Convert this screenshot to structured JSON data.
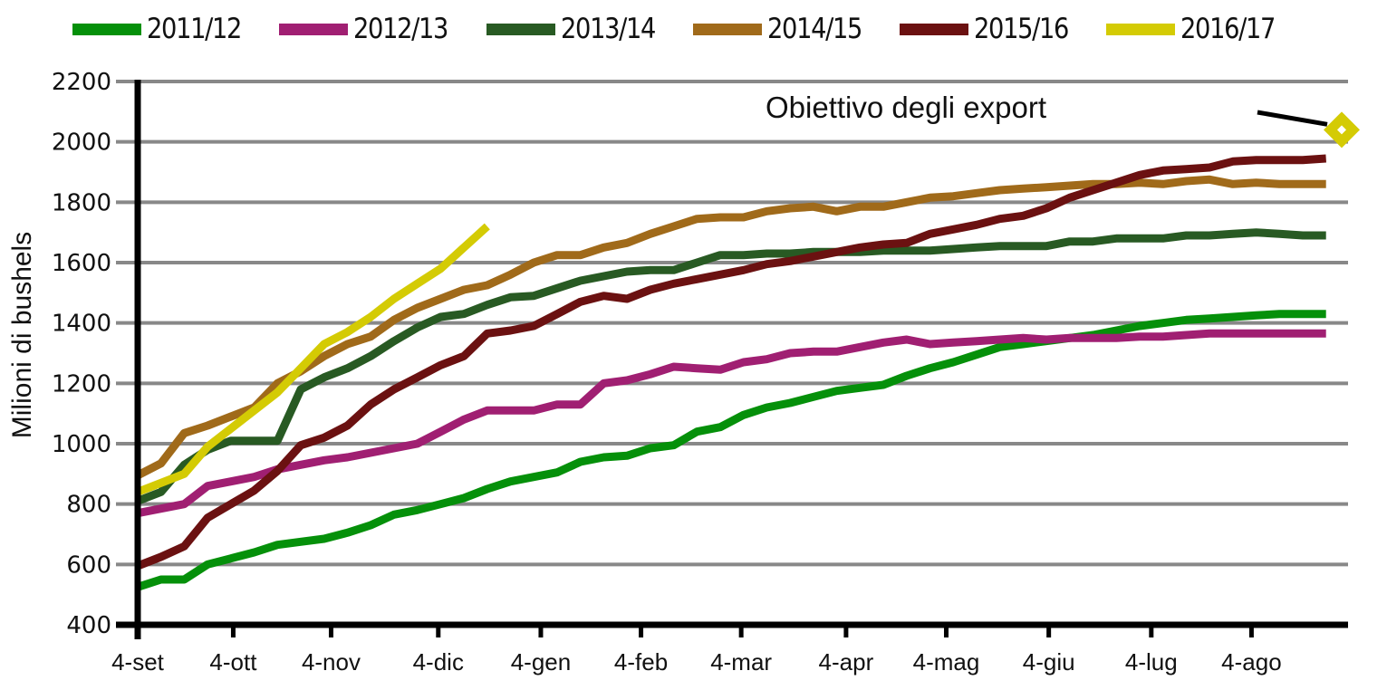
{
  "chart_data": {
    "type": "line",
    "title": "",
    "xlabel": "",
    "ylabel": "Milioni di bushels",
    "ylim": [
      400,
      2200
    ],
    "yticks": [
      400,
      600,
      800,
      1000,
      1200,
      1400,
      1600,
      1800,
      2000,
      2200
    ],
    "x_tick_labels": [
      "4-set",
      "4-ott",
      "4-nov",
      "4-dic",
      "4-gen",
      "4-feb",
      "4-mar",
      "4-apr",
      "4-mag",
      "4-giu",
      "4-lug",
      "4-ago"
    ],
    "x_tick_week_index": [
      0,
      4.1,
      8.3,
      12.9,
      17.3,
      21.6,
      25.9,
      30.4,
      34.7,
      39.1,
      43.5,
      47.8
    ],
    "grid": "horizontal",
    "legend_position": "top",
    "x_unit": "week index from 4-set (weekly)",
    "series": [
      {
        "name": "2011/12",
        "color": "#05900a",
        "values": [
          525,
          550,
          550,
          600,
          620,
          640,
          665,
          675,
          685,
          705,
          730,
          765,
          780,
          800,
          820,
          850,
          875,
          890,
          905,
          940,
          955,
          960,
          985,
          995,
          1040,
          1055,
          1095,
          1120,
          1135,
          1155,
          1175,
          1185,
          1195,
          1225,
          1250,
          1270,
          1295,
          1320,
          1330,
          1340,
          1350,
          1360,
          1375,
          1390,
          1400,
          1410,
          1415,
          1420,
          1425,
          1430,
          1430,
          1430
        ]
      },
      {
        "name": "2012/13",
        "color": "#a01f72",
        "values": [
          770,
          785,
          800,
          860,
          875,
          890,
          915,
          930,
          945,
          955,
          970,
          985,
          1000,
          1040,
          1080,
          1110,
          1110,
          1110,
          1130,
          1130,
          1200,
          1210,
          1230,
          1255,
          1250,
          1245,
          1270,
          1280,
          1300,
          1305,
          1305,
          1320,
          1335,
          1345,
          1330,
          1335,
          1340,
          1345,
          1350,
          1345,
          1350,
          1350,
          1350,
          1355,
          1355,
          1360,
          1365,
          1365,
          1365,
          1365,
          1365,
          1365
        ]
      },
      {
        "name": "2013/14",
        "color": "#285a23",
        "values": [
          810,
          840,
          930,
          980,
          1010,
          1010,
          1010,
          1180,
          1220,
          1250,
          1290,
          1340,
          1385,
          1420,
          1430,
          1460,
          1485,
          1490,
          1515,
          1540,
          1555,
          1570,
          1575,
          1575,
          1600,
          1625,
          1625,
          1630,
          1630,
          1635,
          1635,
          1635,
          1640,
          1640,
          1640,
          1645,
          1650,
          1655,
          1655,
          1655,
          1670,
          1670,
          1680,
          1680,
          1680,
          1690,
          1690,
          1695,
          1700,
          1695,
          1690,
          1690
        ]
      },
      {
        "name": "2014/15",
        "color": "#a06a1a",
        "values": [
          895,
          935,
          1035,
          1060,
          1090,
          1120,
          1200,
          1240,
          1290,
          1330,
          1355,
          1410,
          1450,
          1480,
          1510,
          1525,
          1560,
          1600,
          1625,
          1625,
          1650,
          1665,
          1695,
          1720,
          1745,
          1750,
          1750,
          1770,
          1780,
          1785,
          1770,
          1785,
          1785,
          1800,
          1815,
          1820,
          1830,
          1840,
          1845,
          1850,
          1855,
          1860,
          1860,
          1865,
          1860,
          1870,
          1875,
          1860,
          1865,
          1860,
          1860,
          1860
        ]
      },
      {
        "name": "2015/16",
        "color": "#6b1111",
        "values": [
          595,
          625,
          660,
          755,
          800,
          845,
          910,
          995,
          1020,
          1060,
          1130,
          1180,
          1220,
          1260,
          1290,
          1365,
          1375,
          1390,
          1430,
          1470,
          1490,
          1480,
          1510,
          1530,
          1545,
          1560,
          1575,
          1595,
          1605,
          1620,
          1635,
          1650,
          1660,
          1665,
          1695,
          1710,
          1725,
          1745,
          1755,
          1780,
          1815,
          1840,
          1865,
          1890,
          1905,
          1910,
          1915,
          1935,
          1940,
          1940,
          1940,
          1945
        ]
      },
      {
        "name": "2016/17",
        "color": "#d4cb04",
        "values": [
          840,
          870,
          900,
          990,
          1050,
          1110,
          1170,
          1250,
          1330,
          1370,
          1420,
          1480,
          1530,
          1580,
          1650,
          1720
        ]
      }
    ],
    "annotations": [
      {
        "text": "Obiettivo degli export",
        "target_value": 2040,
        "marker": "diamond",
        "marker_color": "#d4cb04",
        "series": "2016/17",
        "week_index": 52
      }
    ]
  },
  "legend": {
    "items": [
      {
        "label": "2011/12",
        "color": "#05900a"
      },
      {
        "label": "2012/13",
        "color": "#a01f72"
      },
      {
        "label": "2013/14",
        "color": "#285a23"
      },
      {
        "label": "2014/15",
        "color": "#a06a1a"
      },
      {
        "label": "2015/16",
        "color": "#6b1111"
      },
      {
        "label": "2016/17",
        "color": "#d4cb04"
      }
    ]
  },
  "colors": {
    "gridline": "#888888",
    "axis": "#000000"
  }
}
